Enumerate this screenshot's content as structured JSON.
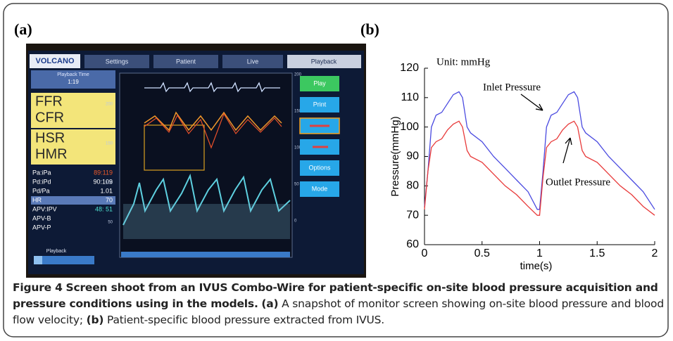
{
  "figure": {
    "panel_labels": [
      "(a)",
      "(b)"
    ],
    "monitor": {
      "logo": "VOLCANO",
      "tabs": [
        "Settings",
        "Patient",
        "Live",
        "Playback"
      ],
      "playback_time_label": "Playback Time",
      "playback_time": "1:19",
      "indices": [
        "FFR",
        "CFR",
        "HSR",
        "HMR"
      ],
      "readouts": [
        [
          "Pa:iPa",
          "89:119"
        ],
        [
          "Pd:iPd",
          "90:109"
        ],
        [
          "Pd/Pa",
          "1.01"
        ],
        [
          "HR",
          "70"
        ],
        [
          "APV:IPV",
          "48: 51"
        ],
        [
          "APV-B",
          ""
        ],
        [
          "APV-P",
          ""
        ]
      ],
      "left_scale": [
        "200",
        "150",
        "100",
        "50"
      ],
      "right_scale": [
        "200",
        "150",
        "100",
        "50",
        "0"
      ],
      "buttons": [
        "Play",
        "Print",
        "Options",
        "Mode"
      ],
      "slider_label": "Playback"
    },
    "caption": {
      "figure_number": "Figure 4",
      "title": "Screen shoot from an IVUS Combo-Wire for patient-specific on-site blood pressure acquisition and pressure conditions using in the models.",
      "part_a_label": "(a)",
      "part_a": "A snapshot of monitor screen showing on-site blood pressure and blood flow velocity;",
      "part_b_label": "(b)",
      "part_b": "Patient-specific blood pressure extracted from IVUS."
    }
  },
  "chart_data": {
    "type": "line",
    "annotations": [
      "Unit: mmHg"
    ],
    "x_label": "time(s)",
    "y_label": "Pressure(mmHg)",
    "x": [
      0,
      0.03,
      0.06,
      0.1,
      0.15,
      0.2,
      0.25,
      0.3,
      0.33,
      0.37,
      0.4,
      0.5,
      0.6,
      0.7,
      0.8,
      0.9,
      0.98,
      1.0,
      1.03,
      1.06,
      1.1,
      1.15,
      1.2,
      1.25,
      1.3,
      1.33,
      1.37,
      1.4,
      1.5,
      1.6,
      1.7,
      1.8,
      1.9,
      2.0
    ],
    "series": [
      {
        "name": "Inlet Pressure",
        "color": "#4a4ae0",
        "values": [
          73,
          85,
          100,
          104,
          105,
          108,
          111,
          112,
          110,
          100,
          98,
          95,
          90,
          86,
          82,
          78,
          72,
          72,
          85,
          100,
          104,
          105,
          108,
          111,
          112,
          110,
          100,
          98,
          95,
          90,
          86,
          82,
          78,
          72
        ]
      },
      {
        "name": "Outlet Pressure",
        "color": "#e83a3a",
        "values": [
          72,
          85,
          93,
          95,
          96,
          99,
          101,
          102,
          100,
          92,
          90,
          88,
          84,
          80,
          77,
          73,
          70,
          70,
          83,
          93,
          95,
          96,
          99,
          101,
          102,
          100,
          92,
          90,
          88,
          84,
          80,
          77,
          73,
          70
        ]
      }
    ],
    "xlim": [
      0,
      2
    ],
    "xticks": [
      0,
      0.5,
      1,
      1.5,
      2
    ],
    "ylim": [
      60,
      120
    ],
    "yticks": [
      60,
      70,
      80,
      90,
      100,
      110,
      120
    ]
  }
}
